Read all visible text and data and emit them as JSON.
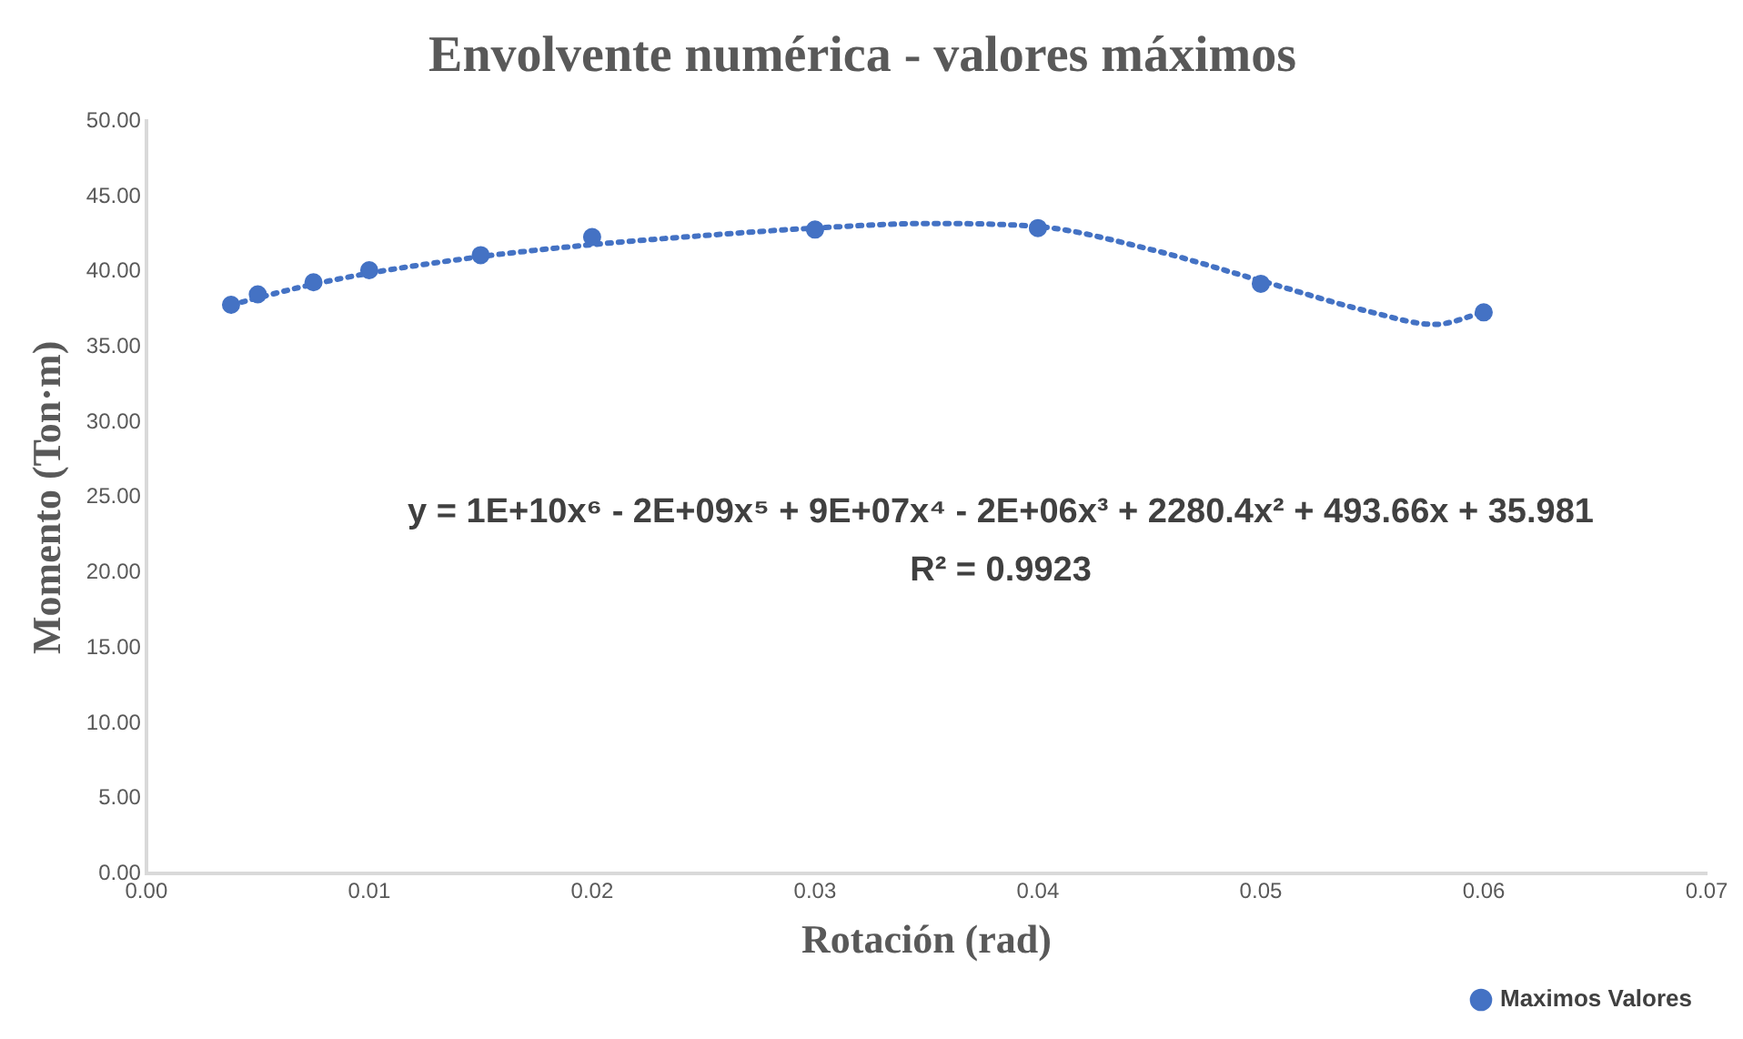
{
  "chart_data": {
    "type": "scatter",
    "title": "Envolvente numérica - valores máximos",
    "xlabel": "Rotación (rad)",
    "ylabel": "Momento (Ton·m)",
    "series": [
      {
        "name": "Maximos Valores",
        "color": "#4472c4",
        "marker": "circle",
        "x": [
          0.0038,
          0.005,
          0.0075,
          0.01,
          0.015,
          0.02,
          0.03,
          0.04,
          0.05,
          0.06
        ],
        "values": [
          37.8,
          38.5,
          39.3,
          40.1,
          41.1,
          42.3,
          42.8,
          42.9,
          39.2,
          37.3
        ]
      },
      {
        "type": "line",
        "color": "#4472c4",
        "line_style": "dotted",
        "marker": "none",
        "x": [
          0.0038,
          0.007,
          0.01,
          0.015,
          0.02,
          0.025,
          0.03,
          0.035,
          0.04,
          0.045,
          0.05,
          0.055,
          0.0578,
          0.06
        ],
        "values": [
          37.8,
          39.0,
          39.9,
          41.0,
          41.8,
          42.4,
          42.9,
          43.2,
          43.0,
          41.5,
          39.4,
          37.3,
          36.5,
          37.3
        ]
      }
    ],
    "xlim": [
      0,
      0.07
    ],
    "xticks": [
      {
        "value": 0,
        "label": "0.00"
      },
      {
        "value": 0.01,
        "label": "0.01"
      },
      {
        "value": 0.02,
        "label": "0.02"
      },
      {
        "value": 0.03,
        "label": "0.03"
      },
      {
        "value": 0.04,
        "label": "0.04"
      },
      {
        "value": 0.05,
        "label": "0.05"
      },
      {
        "value": 0.06,
        "label": "0.06"
      },
      {
        "value": 0.07,
        "label": "0.07"
      }
    ],
    "ylim": [
      0,
      50
    ],
    "yticks": [
      {
        "value": 0,
        "label": "0.00"
      },
      {
        "value": 5,
        "label": "5.00"
      },
      {
        "value": 10,
        "label": "10.00"
      },
      {
        "value": 15,
        "label": "15.00"
      },
      {
        "value": 20,
        "label": "20.00"
      },
      {
        "value": 25,
        "label": "25.00"
      },
      {
        "value": 30,
        "label": "30.00"
      },
      {
        "value": 35,
        "label": "35.00"
      },
      {
        "value": 40,
        "label": "40.00"
      },
      {
        "value": 45,
        "label": "45.00"
      },
      {
        "value": 50,
        "label": "50.00"
      }
    ],
    "annotations": [
      "y = 1E+10x⁶ - 2E+09x⁵ + 9E+07x⁴ - 2E+06x³ + 2280.4x² + 493.66x + 35.981",
      "R² = 0.9923"
    ],
    "grid": false,
    "legend": "bottom right"
  }
}
